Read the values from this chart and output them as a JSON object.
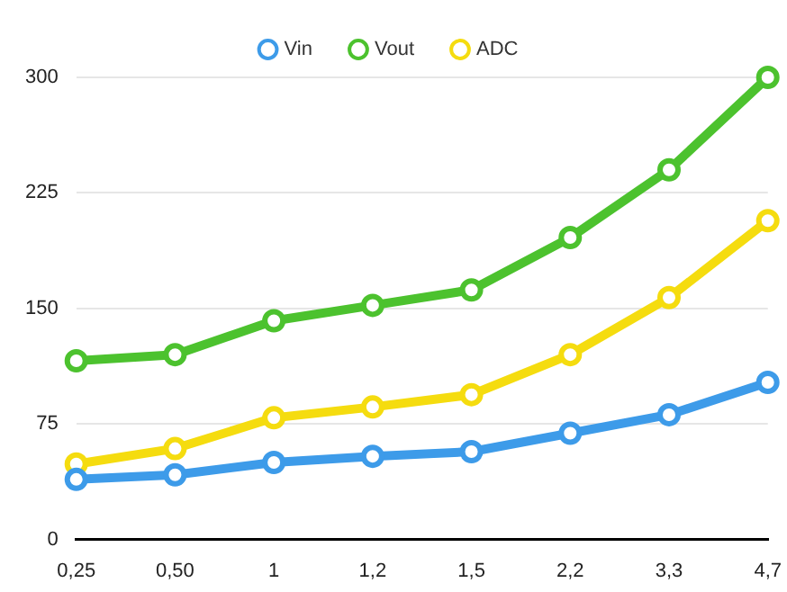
{
  "chart_data": {
    "type": "line",
    "categories": [
      "0,25",
      "0,50",
      "1",
      "1,2",
      "1,5",
      "2,2",
      "3,3",
      "4,7"
    ],
    "series": [
      {
        "name": "Vin",
        "color": "#3d9be9",
        "values": [
          39,
          42,
          50,
          54,
          57,
          69,
          81,
          102
        ]
      },
      {
        "name": "Vout",
        "color": "#4cc22e",
        "values": [
          116,
          120,
          142,
          152,
          162,
          196,
          240,
          300
        ]
      },
      {
        "name": "ADC",
        "color": "#f5dc0f",
        "values": [
          49,
          59,
          79,
          86,
          94,
          120,
          157,
          207
        ]
      }
    ],
    "ylim": [
      0,
      300
    ],
    "yticks": [
      0,
      75,
      150,
      225,
      300
    ],
    "grid": "y",
    "legend": "top",
    "marker": "circle",
    "line_style": "solid"
  }
}
